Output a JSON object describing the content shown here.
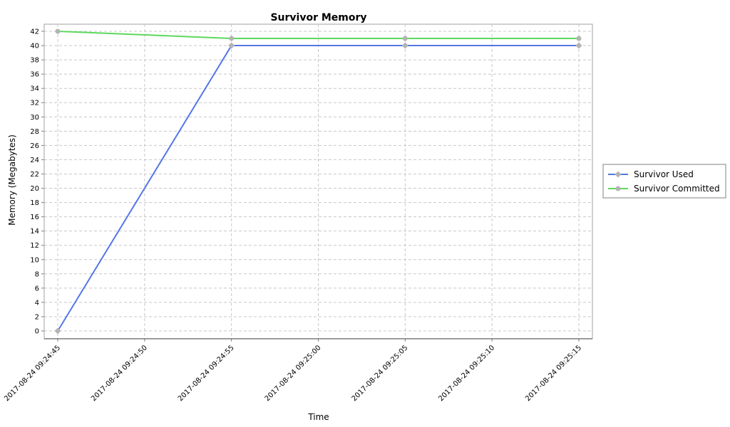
{
  "chart_data": {
    "type": "line",
    "title": "Survivor Memory",
    "xlabel": "Time",
    "ylabel": "Memory (Megabytes)",
    "x": [
      "2017-08-24 09:24:45",
      "2017-08-24 09:24:55",
      "2017-08-24 09:25:05",
      "2017-08-24 09:25:15"
    ],
    "xticks": [
      "2017-08-24 09:24:45",
      "2017-08-24 09:24:50",
      "2017-08-24 09:24:55",
      "2017-08-24 09:25:00",
      "2017-08-24 09:25:05",
      "2017-08-24 09:25:10",
      "2017-08-24 09:25:15"
    ],
    "yticks": [
      0,
      2,
      4,
      6,
      8,
      10,
      12,
      14,
      16,
      18,
      20,
      22,
      24,
      26,
      28,
      30,
      32,
      34,
      36,
      38,
      40,
      42
    ],
    "ylim": [
      -1,
      43
    ],
    "grid": true,
    "legend_position": "right",
    "series": [
      {
        "name": "Survivor Used",
        "values": [
          0,
          40,
          40,
          40
        ],
        "color": "#5477e8",
        "marker": "diamond"
      },
      {
        "name": "Survivor Committed",
        "values": [
          42,
          41,
          41,
          41
        ],
        "color": "#5dd85d",
        "marker": "circle"
      }
    ],
    "marker_color": "#b4b4b4"
  }
}
